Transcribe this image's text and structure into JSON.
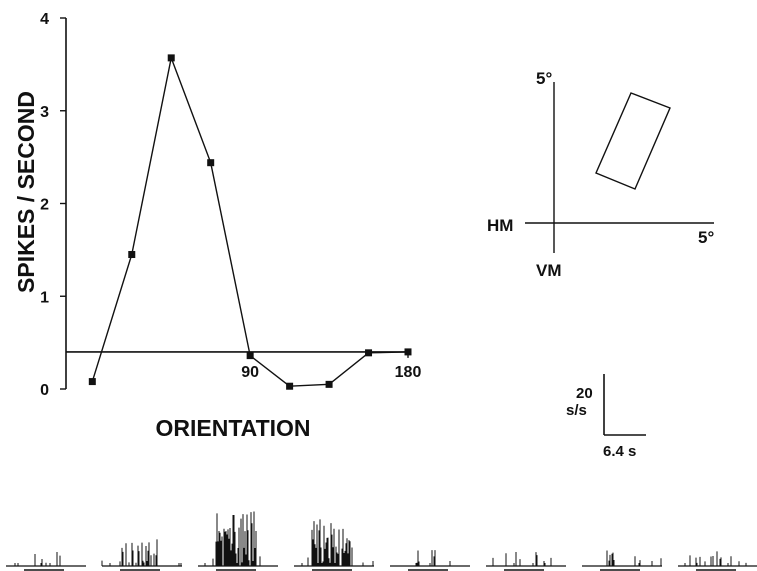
{
  "chart_data": {
    "type": "line",
    "xlabel": "ORIENTATION",
    "ylabel": "SPIKES / SECOND",
    "ylim": [
      0,
      4
    ],
    "y_ticks": [
      "0",
      "1",
      "2",
      "3",
      "4"
    ],
    "x_ticks": [
      {
        "value": 90,
        "label": "90"
      },
      {
        "value": 180,
        "label": "180"
      }
    ],
    "xlim": [
      -15,
      180
    ],
    "series": [
      {
        "x": [
          0,
          22.5,
          45,
          67.5,
          90,
          112.5,
          135,
          157.5,
          180
        ],
        "y": [
          0.08,
          1.45,
          3.57,
          2.44,
          0.36,
          0.03,
          0.05,
          0.39,
          0.4
        ]
      }
    ],
    "baseline": 0.4,
    "grid": false
  },
  "inset": {
    "vertical_top_label": "5°",
    "horizontal_right_label": "5°",
    "hm_label": "HM",
    "vm_label": "VM"
  },
  "scale_bar": {
    "y_value": "20",
    "y_unit": "s/s",
    "x_label": "6.4 s"
  },
  "histograms": {
    "count": 8,
    "activity": [
      0.12,
      0.42,
      1.0,
      0.86,
      0.14,
      0.12,
      0.13,
      0.22
    ]
  }
}
